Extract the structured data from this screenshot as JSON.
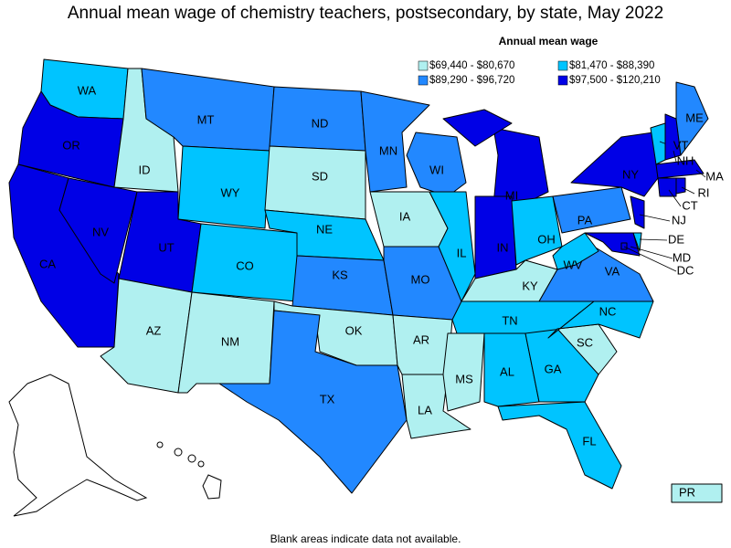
{
  "title": "Annual mean wage of chemistry teachers, postsecondary, by state, May 2022",
  "legend": {
    "title": "Annual mean wage",
    "items": [
      {
        "label": "$69,440 - $80,670",
        "color": "#b0f0f0"
      },
      {
        "label": "$81,470 - $88,390",
        "color": "#00c4ff"
      },
      {
        "label": "$89,290 - $96,720",
        "color": "#2288ff"
      },
      {
        "label": "$97,500 - $120,210",
        "color": "#0000e6"
      }
    ]
  },
  "states": [
    {
      "label": "WA",
      "color": "#00c4ff"
    },
    {
      "label": "OR",
      "color": "#0000e6"
    },
    {
      "label": "CA",
      "color": "#0000e6"
    },
    {
      "label": "NV",
      "color": "#0000e6"
    },
    {
      "label": "ID",
      "color": "#b0f0f0"
    },
    {
      "label": "MT",
      "color": "#2288ff"
    },
    {
      "label": "WY",
      "color": "#00c4ff"
    },
    {
      "label": "UT",
      "color": "#0000e6"
    },
    {
      "label": "CO",
      "color": "#00c4ff"
    },
    {
      "label": "AZ",
      "color": "#b0f0f0"
    },
    {
      "label": "NM",
      "color": "#b0f0f0"
    },
    {
      "label": "ND",
      "color": "#2288ff"
    },
    {
      "label": "SD",
      "color": "#b0f0f0"
    },
    {
      "label": "NE",
      "color": "#00c4ff"
    },
    {
      "label": "KS",
      "color": "#2288ff"
    },
    {
      "label": "OK",
      "color": "#b0f0f0"
    },
    {
      "label": "TX",
      "color": "#2288ff"
    },
    {
      "label": "MN",
      "color": "#2288ff"
    },
    {
      "label": "IA",
      "color": "#b0f0f0"
    },
    {
      "label": "MO",
      "color": "#2288ff"
    },
    {
      "label": "AR",
      "color": "#b0f0f0"
    },
    {
      "label": "LA",
      "color": "#b0f0f0"
    },
    {
      "label": "WI",
      "color": "#2288ff"
    },
    {
      "label": "IL",
      "color": "#00c4ff"
    },
    {
      "label": "MI",
      "color": "#0000e6"
    },
    {
      "label": "IN",
      "color": "#0000e6"
    },
    {
      "label": "OH",
      "color": "#00c4ff"
    },
    {
      "label": "KY",
      "color": "#b0f0f0"
    },
    {
      "label": "TN",
      "color": "#00c4ff"
    },
    {
      "label": "MS",
      "color": "#b0f0f0"
    },
    {
      "label": "AL",
      "color": "#00c4ff"
    },
    {
      "label": "GA",
      "color": "#00c4ff"
    },
    {
      "label": "FL",
      "color": "#00c4ff"
    },
    {
      "label": "SC",
      "color": "#b0f0f0"
    },
    {
      "label": "NC",
      "color": "#00c4ff"
    },
    {
      "label": "VA",
      "color": "#2288ff"
    },
    {
      "label": "WV",
      "color": "#00c4ff"
    },
    {
      "label": "PA",
      "color": "#2288ff"
    },
    {
      "label": "NY",
      "color": "#0000e6"
    },
    {
      "label": "NJ",
      "color": "#0000e6"
    },
    {
      "label": "DE",
      "color": "#00c4ff"
    },
    {
      "label": "MD",
      "color": "#0000e6"
    },
    {
      "label": "VT",
      "color": "#00c4ff"
    },
    {
      "label": "NH",
      "color": "#0000e6"
    },
    {
      "label": "ME",
      "color": "#2288ff"
    },
    {
      "label": "MA",
      "color": "#0000e6"
    },
    {
      "label": "CT",
      "color": "#0000e6"
    },
    {
      "label": "RI",
      "color": "#0000e6"
    },
    {
      "label": "DC",
      "color": "#0000e6"
    },
    {
      "label": "PR",
      "color": "#b0f0f0"
    }
  ],
  "note": "Blank areas indicate data not available."
}
